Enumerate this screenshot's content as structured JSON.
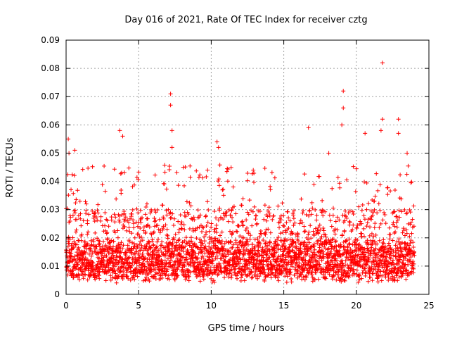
{
  "chart_data": {
    "type": "scatter",
    "title": "Day 016 of 2021, Rate Of TEC Index for receiver cztg",
    "xlabel": "GPS time / hours",
    "ylabel": "ROTI / TECUs",
    "xlim": [
      0,
      25
    ],
    "ylim": [
      0,
      0.09
    ],
    "x_ticks": [
      0,
      5,
      10,
      15,
      20,
      25
    ],
    "x_tick_labels": [
      "0",
      "5",
      "10",
      "15",
      "20",
      "25"
    ],
    "y_ticks": [
      0,
      0.01,
      0.02,
      0.03,
      0.04,
      0.05,
      0.06,
      0.07,
      0.08,
      0.09
    ],
    "y_tick_labels": [
      "0",
      "0.01",
      "0.02",
      "0.03",
      "0.04",
      "0.05",
      "0.06",
      "0.07",
      "0.08",
      "0.09"
    ],
    "grid": true,
    "marker": "+",
    "marker_color": "#ff0000",
    "series": [
      {
        "name": "ROTI",
        "x_range": [
          0,
          24
        ],
        "baseline_range": [
          0.006,
          0.018
        ],
        "notable_points": [
          {
            "x": 0.15,
            "y": 0.055
          },
          {
            "x": 0.2,
            "y": 0.05
          },
          {
            "x": 0.6,
            "y": 0.051
          },
          {
            "x": 3.7,
            "y": 0.058
          },
          {
            "x": 3.9,
            "y": 0.056
          },
          {
            "x": 7.2,
            "y": 0.071
          },
          {
            "x": 7.2,
            "y": 0.067
          },
          {
            "x": 7.3,
            "y": 0.058
          },
          {
            "x": 7.3,
            "y": 0.052
          },
          {
            "x": 10.4,
            "y": 0.054
          },
          {
            "x": 10.5,
            "y": 0.052
          },
          {
            "x": 16.7,
            "y": 0.059
          },
          {
            "x": 18.1,
            "y": 0.05
          },
          {
            "x": 19.1,
            "y": 0.072
          },
          {
            "x": 19.1,
            "y": 0.066
          },
          {
            "x": 19.0,
            "y": 0.06
          },
          {
            "x": 20.6,
            "y": 0.057
          },
          {
            "x": 21.8,
            "y": 0.082
          },
          {
            "x": 21.8,
            "y": 0.062
          },
          {
            "x": 21.7,
            "y": 0.058
          },
          {
            "x": 22.9,
            "y": 0.062
          },
          {
            "x": 22.9,
            "y": 0.057
          },
          {
            "x": 23.5,
            "y": 0.05
          }
        ]
      }
    ]
  }
}
